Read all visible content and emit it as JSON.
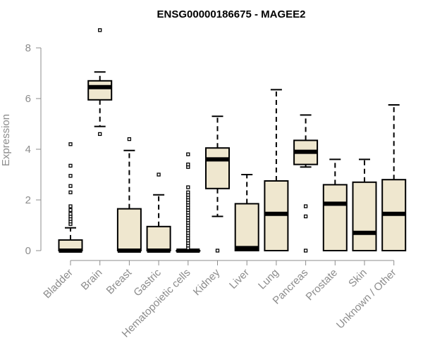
{
  "chart_data": {
    "type": "boxplot",
    "title": "ENSG00000186675 - MAGEE2",
    "xlabel": "",
    "ylabel": "Expression",
    "ylim": [
      0,
      8.7
    ],
    "yticks": [
      0,
      2,
      4,
      6,
      8
    ],
    "grid": false,
    "box_color": "#efe7cf",
    "outline_color": "#000000",
    "axis_color": "#8c8c8c",
    "categories": [
      "Bladder",
      "Brain",
      "Breast",
      "Gastric",
      "Hematopoietic cells",
      "Kidney",
      "Liver",
      "Lung",
      "Pancreas",
      "Prostate",
      "Skin",
      "Unknown / Other"
    ],
    "boxes": [
      {
        "name": "Bladder",
        "whisker_low": 0,
        "q1": 0,
        "median": 0,
        "q3": 0.42,
        "whisker_high": 0.9,
        "outliers": [
          1.05,
          1.15,
          1.25,
          1.35,
          1.45,
          1.6,
          1.75,
          2.3,
          2.55,
          2.95,
          3.35,
          4.2
        ]
      },
      {
        "name": "Brain",
        "whisker_low": 4.9,
        "q1": 5.95,
        "median": 6.45,
        "q3": 6.7,
        "whisker_high": 7.05,
        "outliers": [
          4.6,
          8.7
        ]
      },
      {
        "name": "Breast",
        "whisker_low": 0,
        "q1": 0,
        "median": 0,
        "q3": 1.65,
        "whisker_high": 3.95,
        "outliers": [
          4.4
        ]
      },
      {
        "name": "Gastric",
        "whisker_low": 0,
        "q1": 0,
        "median": 0,
        "q3": 0.95,
        "whisker_high": 2.2,
        "outliers": [
          3.0
        ]
      },
      {
        "name": "Hematopoietic cells",
        "whisker_low": 0,
        "q1": 0,
        "median": 0,
        "q3": 0,
        "whisker_high": 0,
        "outliers": [
          0.1,
          0.2,
          0.3,
          0.4,
          0.5,
          0.6,
          0.7,
          0.8,
          0.9,
          1.0,
          1.1,
          1.2,
          1.3,
          1.4,
          1.5,
          1.6,
          1.7,
          1.8,
          1.9,
          2.0,
          2.1,
          2.2,
          2.3,
          2.5,
          3.3,
          3.4,
          3.8
        ]
      },
      {
        "name": "Kidney",
        "whisker_low": 1.35,
        "q1": 2.45,
        "median": 3.6,
        "q3": 4.05,
        "whisker_high": 5.3,
        "outliers": [
          0
        ]
      },
      {
        "name": "Liver",
        "whisker_low": 0,
        "q1": 0,
        "median": 0.1,
        "q3": 1.85,
        "whisker_high": 3.0,
        "outliers": []
      },
      {
        "name": "Lung",
        "whisker_low": 0,
        "q1": 0,
        "median": 1.45,
        "q3": 2.75,
        "whisker_high": 6.35,
        "outliers": []
      },
      {
        "name": "Pancreas",
        "whisker_low": 3.3,
        "q1": 3.4,
        "median": 3.9,
        "q3": 4.35,
        "whisker_high": 5.35,
        "outliers": [
          0,
          1.35,
          1.75
        ]
      },
      {
        "name": "Prostate",
        "whisker_low": 0,
        "q1": 0,
        "median": 1.85,
        "q3": 2.6,
        "whisker_high": 3.6,
        "outliers": []
      },
      {
        "name": "Skin",
        "whisker_low": 0,
        "q1": 0,
        "median": 0.7,
        "q3": 2.7,
        "whisker_high": 3.6,
        "outliers": []
      },
      {
        "name": "Unknown / Other",
        "whisker_low": 0,
        "q1": 0,
        "median": 1.45,
        "q3": 2.8,
        "whisker_high": 5.75,
        "outliers": []
      }
    ]
  }
}
